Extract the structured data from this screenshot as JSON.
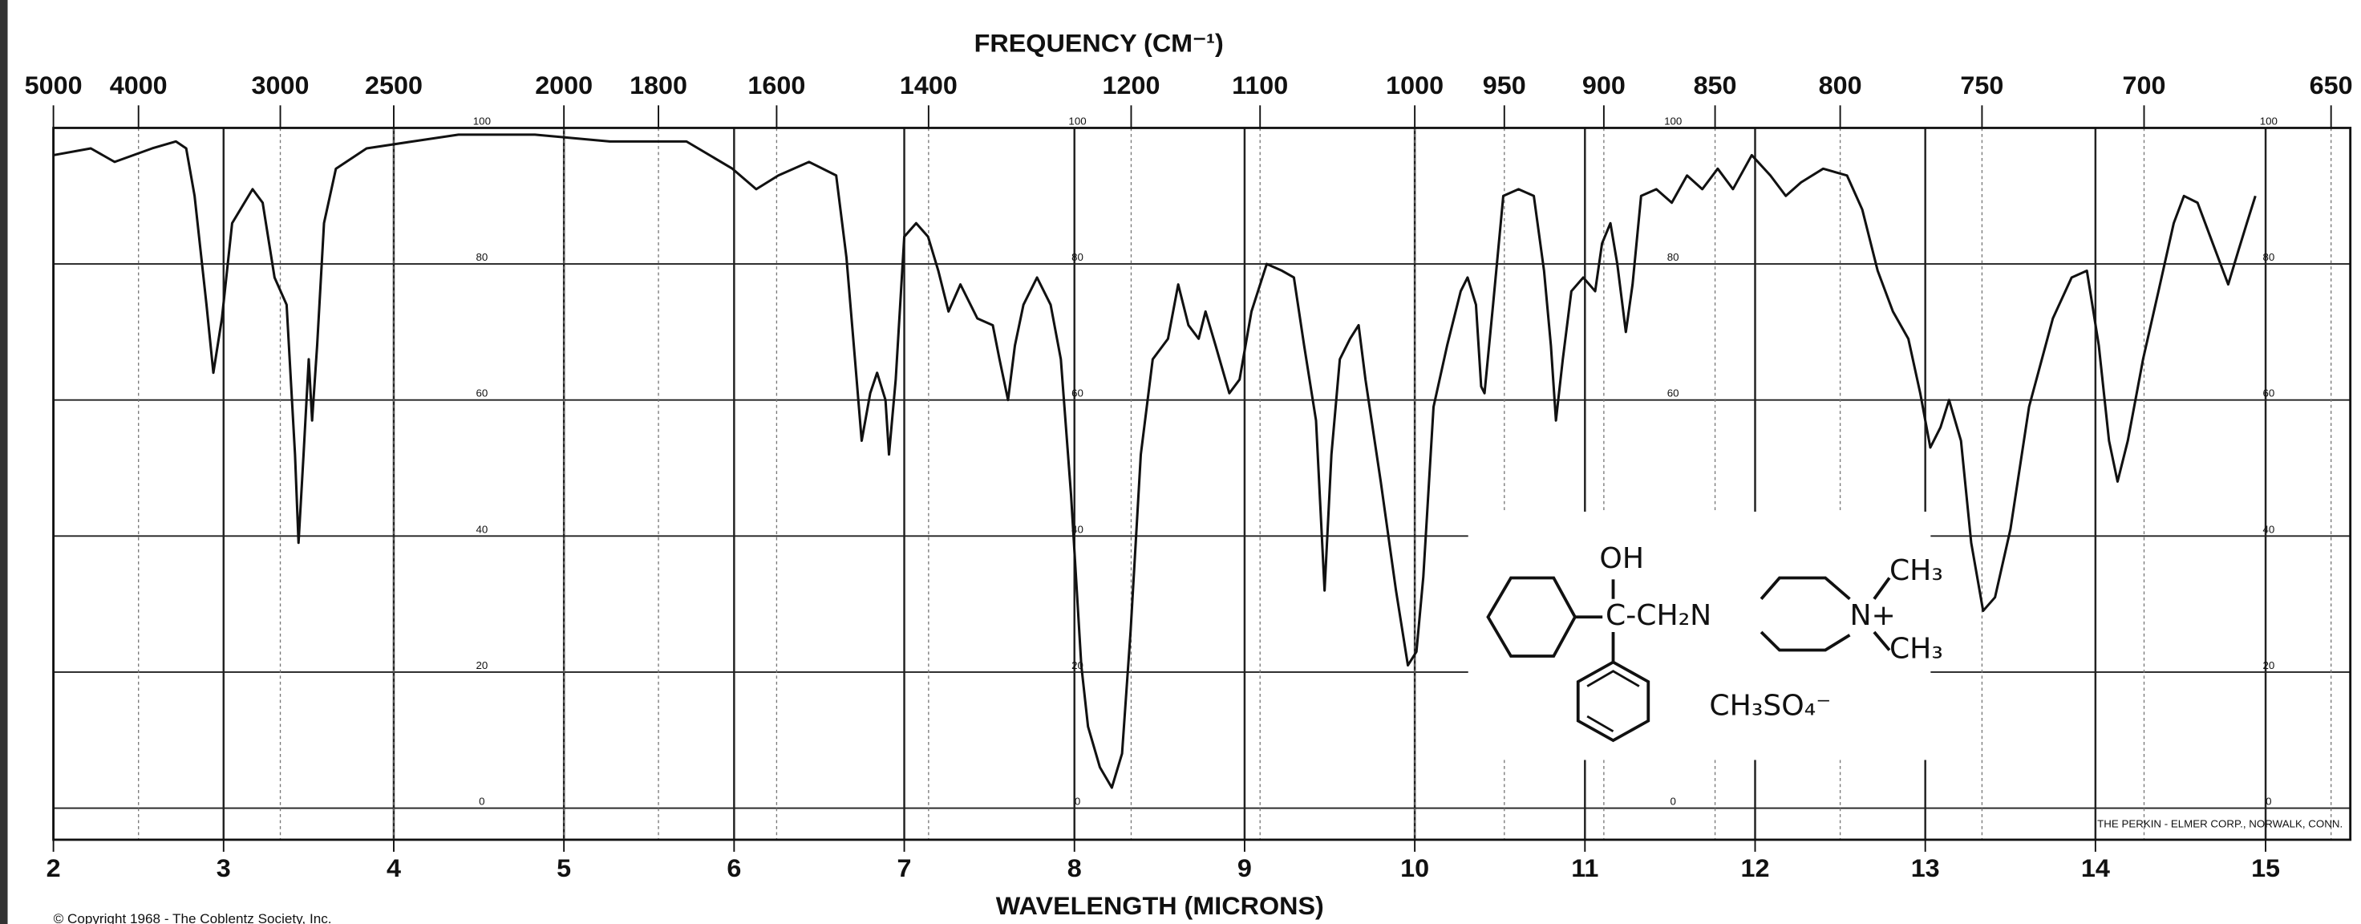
{
  "chart_data": {
    "type": "line",
    "title": "FREQUENCY (CM⁻¹)",
    "x_label": "WAVELENGTH (MICRONS)",
    "footer": "THE PERKIN - ELMER CORP., NORWALK, CONN.",
    "copyright": "© Copyright 1968 - The Coblentz Society, Inc.",
    "structure_labels": [
      "OH",
      "C-CH₂N",
      "CH₃",
      "N+",
      "CH₃",
      "CH₃SO₄⁻"
    ],
    "xlim": [
      2,
      15.5
    ],
    "ylim": [
      0,
      100
    ],
    "xticks": [
      2,
      3,
      4,
      5,
      6,
      7,
      8,
      9,
      10,
      11,
      12,
      13,
      14,
      15
    ],
    "x2ticks": [
      5000,
      4000,
      3000,
      2500,
      2000,
      1800,
      1600,
      1400,
      1200,
      1100,
      1000,
      950,
      900,
      850,
      800,
      750,
      700,
      650
    ],
    "yticks": [
      0,
      20,
      40,
      60,
      80,
      100
    ],
    "grid": true,
    "color": "#111111",
    "x": [
      2.0,
      2.22,
      2.36,
      2.58,
      2.72,
      2.78,
      2.83,
      2.9,
      2.94,
      2.99,
      3.05,
      3.17,
      3.23,
      3.3,
      3.37,
      3.42,
      3.44,
      3.47,
      3.5,
      3.52,
      3.55,
      3.59,
      3.66,
      3.84,
      4.11,
      4.38,
      4.83,
      5.27,
      5.72,
      5.99,
      6.13,
      6.26,
      6.44,
      6.6,
      6.66,
      6.71,
      6.75,
      6.8,
      6.84,
      6.89,
      6.91,
      6.95,
      7.0,
      7.07,
      7.14,
      7.2,
      7.26,
      7.33,
      7.43,
      7.52,
      7.56,
      7.61,
      7.65,
      7.7,
      7.78,
      7.86,
      7.92,
      7.98,
      8.04,
      8.08,
      8.15,
      8.22,
      8.28,
      8.33,
      8.39,
      8.46,
      8.55,
      8.61,
      8.67,
      8.73,
      8.77,
      8.83,
      8.91,
      8.97,
      9.04,
      9.13,
      9.22,
      9.29,
      9.35,
      9.42,
      9.47,
      9.51,
      9.56,
      9.62,
      9.67,
      9.71,
      9.8,
      9.89,
      9.96,
      10.01,
      10.05,
      10.11,
      10.19,
      10.27,
      10.31,
      10.36,
      10.39,
      10.41,
      10.46,
      10.52,
      10.61,
      10.7,
      10.76,
      10.8,
      10.83,
      10.87,
      10.92,
      10.99,
      11.06,
      11.1,
      11.15,
      11.19,
      11.24,
      11.28,
      11.33,
      11.42,
      11.51,
      11.6,
      11.69,
      11.78,
      11.87,
      11.98,
      12.09,
      12.18,
      12.27,
      12.4,
      12.54,
      12.63,
      12.72,
      12.81,
      12.9,
      12.97,
      13.03,
      13.09,
      13.14,
      13.21,
      13.27,
      13.34,
      13.41,
      13.5,
      13.61,
      13.75,
      13.86,
      13.95,
      14.02,
      14.08,
      14.13,
      14.19,
      14.28,
      14.37,
      14.46,
      14.52,
      14.6,
      14.69,
      14.78,
      14.84,
      14.89,
      14.94
    ],
    "values": [
      96,
      97,
      95,
      97,
      98,
      97,
      90,
      74,
      64,
      72,
      86,
      91,
      89,
      78,
      74,
      52,
      39,
      52,
      66,
      57,
      68,
      86,
      94,
      97,
      98,
      99,
      99,
      98,
      98,
      94,
      91,
      93,
      95,
      93,
      81,
      66,
      54,
      61,
      64,
      60,
      52,
      63,
      84,
      86,
      84,
      79,
      73,
      77,
      72,
      71,
      66,
      60,
      68,
      74,
      78,
      74,
      66,
      46,
      21,
      12,
      6,
      3,
      8,
      26,
      52,
      66,
      69,
      77,
      71,
      69,
      73,
      68,
      61,
      63,
      73,
      80,
      79,
      78,
      68,
      57,
      32,
      52,
      66,
      69,
      71,
      63,
      48,
      32,
      21,
      23,
      34,
      59,
      68,
      76,
      78,
      74,
      62,
      61,
      74,
      90,
      91,
      90,
      79,
      68,
      57,
      66,
      76,
      78,
      76,
      83,
      86,
      80,
      70,
      77,
      90,
      91,
      89,
      93,
      91,
      94,
      91,
      96,
      93,
      90,
      92,
      94,
      93,
      88,
      79,
      73,
      69,
      61,
      53,
      56,
      60,
      54,
      39,
      29,
      31,
      41,
      59,
      72,
      78,
      79,
      68,
      54,
      48,
      54,
      66,
      76,
      86,
      90,
      89,
      83,
      77,
      82,
      86,
      90
    ]
  }
}
